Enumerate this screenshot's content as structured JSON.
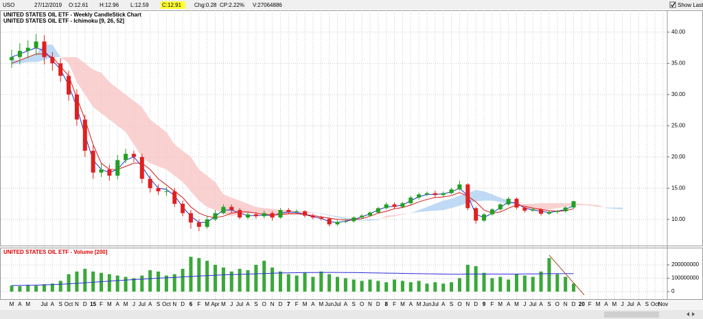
{
  "header": {
    "symbol": "USO",
    "date": "27/12/2019",
    "open": "O:12.61",
    "high": "H:12.96",
    "low": "L:12.59",
    "close": "C:12.91",
    "change": "Chg:0.28",
    "change_pct": "CP:2.22%",
    "volume": "V:27064886",
    "show_last": "Show Last"
  },
  "chart_data": {
    "type": "candlestick",
    "title": "UNITED STATES OIL ETF - Weekly CandleStick Chart",
    "subtitle": "UNITED STATES OIL ETF - Ichimoku [9, 26, 52]",
    "categories": [
      "M",
      "A",
      "M",
      null,
      "Jul",
      "A",
      "S",
      "Oct",
      "N",
      "D",
      "15",
      "F",
      "M",
      "A",
      "M",
      "J",
      "Jul",
      "A",
      "S",
      "Oct",
      "N",
      "D",
      "6",
      "F",
      "M",
      "Apr",
      "M",
      "J",
      "Jul",
      "A",
      "S",
      "O",
      "N",
      "D",
      "7",
      "F",
      "M",
      "A",
      "M",
      "Jun",
      "Jul",
      "A",
      "S",
      "O",
      "N",
      "D",
      "8",
      "F",
      "M",
      "A",
      "M",
      "Jun",
      "Jul",
      "A",
      "S",
      "O",
      "N",
      "D",
      "9",
      "F",
      "M",
      "A",
      "M",
      "J",
      "Jul",
      "A",
      "S",
      "O",
      "N",
      "D",
      "20",
      "F",
      "M",
      "A",
      "M",
      "J",
      "Jul",
      "A",
      "S",
      "Oct",
      "Nov"
    ],
    "open": [
      35.5,
      36,
      37,
      37.5,
      38.5,
      36,
      35,
      33,
      30,
      26,
      21,
      17.5,
      18,
      17,
      19.5,
      20.5,
      20,
      16.5,
      15,
      14.5,
      14.5,
      12.5,
      11,
      9.5,
      8.8,
      10,
      11,
      12,
      11.5,
      10.3,
      10.8,
      10.5,
      11,
      10.3,
      11.5,
      11.2,
      11.3,
      10.6,
      10.3,
      10.1,
      9.2,
      9.6,
      9.7,
      10.3,
      10.6,
      11.1,
      11.8,
      12.4,
      12,
      12.6,
      13.5,
      14,
      14.2,
      13.9,
      14.2,
      14.8,
      15.6,
      11.8,
      9.8,
      10.8,
      11.6,
      12.4,
      13.3,
      11.9,
      11.4,
      11.6,
      10.9,
      11.2,
      11.3,
      11.9,
      null,
      null,
      null,
      null,
      null,
      null,
      null,
      null,
      null,
      null,
      null
    ],
    "high": [
      37.2,
      38.2,
      38.7,
      39.7,
      39.5,
      36.8,
      35.8,
      33.8,
      30.8,
      26.8,
      21.8,
      19,
      18.8,
      20.3,
      21.3,
      21,
      20.5,
      17,
      15.6,
      15.2,
      15,
      13,
      11.5,
      10,
      10.6,
      11.5,
      12.4,
      12.4,
      11.8,
      11.1,
      11.2,
      11.4,
      11.3,
      11.8,
      11.8,
      11.6,
      11.5,
      10.9,
      10.6,
      10.3,
      9.9,
      10,
      10.5,
      10.8,
      11.3,
      12,
      12.7,
      12.7,
      12.8,
      13.8,
      14.3,
      14.5,
      14.6,
      14.5,
      15.1,
      16.2,
      15.8,
      12,
      11,
      11.8,
      12.6,
      13.6,
      13.5,
      12.1,
      11.9,
      11.8,
      11.4,
      11.5,
      12.1,
      12.96,
      null,
      null,
      null,
      null,
      null,
      null,
      null,
      null,
      null,
      null,
      null
    ],
    "low": [
      34.3,
      34.8,
      35.8,
      36.3,
      34.8,
      33.8,
      32,
      29,
      25,
      20,
      16.5,
      16.8,
      16.2,
      16.4,
      19,
      19.2,
      15.8,
      14.3,
      13.9,
      13.8,
      12,
      10.5,
      8.5,
      8.1,
      8.5,
      9.7,
      10.8,
      11,
      10,
      10,
      10.1,
      10.2,
      9.8,
      10.1,
      10.9,
      10.9,
      10.3,
      10,
      9.8,
      8.9,
      9,
      9.4,
      9.5,
      10.1,
      10.4,
      10.9,
      11.6,
      11.7,
      11.8,
      12.4,
      13.2,
      13.7,
      13.5,
      13.6,
      14,
      14.6,
      11.5,
      9.3,
      9.6,
      10.6,
      11.4,
      12.2,
      11.6,
      11.1,
      11.2,
      10.6,
      10.7,
      10.9,
      11.1,
      11.7,
      null,
      null,
      null,
      null,
      null,
      null,
      null,
      null,
      null,
      null,
      null
    ],
    "close": [
      36,
      37,
      37.5,
      38.5,
      36,
      35,
      33,
      30,
      26,
      21,
      17.5,
      18,
      17,
      19.5,
      20.5,
      20,
      16.5,
      15,
      14.5,
      14.5,
      12.5,
      11,
      9.5,
      8.8,
      10,
      11,
      12,
      11.5,
      10.3,
      10.8,
      10.5,
      11,
      10.3,
      11.5,
      11.2,
      11.3,
      10.6,
      10.3,
      10.1,
      9.2,
      9.6,
      9.7,
      10.3,
      10.6,
      11.1,
      11.8,
      12.4,
      12,
      12.6,
      13.5,
      14,
      14.2,
      13.9,
      14.2,
      14.8,
      15.6,
      11.8,
      9.8,
      10.8,
      11.6,
      12.4,
      13.3,
      11.9,
      11.4,
      11.6,
      10.9,
      11.2,
      11.3,
      11.9,
      12.91,
      null,
      null,
      null,
      null,
      null,
      null,
      null,
      null,
      null,
      null,
      null
    ],
    "up_color": "#22a022",
    "down_color": "#e02020",
    "series": [
      {
        "color": "#1f2fd0",
        "values": [
          36,
          36.5,
          37,
          37.5,
          37,
          35.5,
          34,
          31.5,
          28,
          23.5,
          19.5,
          18,
          17.5,
          18,
          19.5,
          20,
          18.5,
          16.5,
          15,
          14.8,
          13.8,
          12,
          10.5,
          9.5,
          9.5,
          10.5,
          11.5,
          11.5,
          11,
          10.6,
          10.6,
          10.7,
          10.6,
          11,
          11.2,
          11.1,
          10.8,
          10.4,
          10.2,
          9.6,
          9.5,
          9.7,
          10,
          10.4,
          10.9,
          11.5,
          12,
          12.1,
          12.3,
          13,
          13.6,
          14,
          14,
          14.1,
          14.4,
          15,
          13.8,
          10.8,
          10.3,
          11,
          11.9,
          12.8,
          12.6,
          11.8,
          11.5,
          11.3,
          11.1,
          11.3,
          11.6,
          12.2,
          null,
          null,
          null,
          null,
          null,
          null,
          null,
          null,
          null,
          null,
          null
        ]
      },
      {
        "color": "#d01818",
        "values": [
          35,
          35.5,
          36,
          36.5,
          36.5,
          36,
          34.5,
          33,
          29.5,
          26,
          22,
          19,
          18,
          18,
          18.5,
          19,
          19,
          18,
          16.5,
          15.5,
          14.5,
          13.5,
          12,
          11,
          10.5,
          10.3,
          10.5,
          11,
          11.2,
          11.2,
          11,
          10.8,
          10.7,
          10.8,
          10.9,
          10.9,
          10.8,
          10.6,
          10.4,
          10.2,
          10,
          9.9,
          10,
          10.1,
          10.5,
          11,
          11.3,
          11.7,
          11.9,
          12.3,
          12.8,
          13.2,
          13.5,
          13.6,
          13.8,
          14.3,
          13.7,
          12.8,
          11.5,
          11,
          11.2,
          11.8,
          12.3,
          12.1,
          11.8,
          11.6,
          11.4,
          11.3,
          11.4,
          11.7,
          null,
          null,
          null,
          null,
          null,
          null,
          null,
          null,
          null,
          null,
          null
        ]
      }
    ],
    "cloud": {
      "bull_color": "#a9cdf2",
      "bear_color": "#f8c2c2",
      "span_a": [
        35.5,
        35.5,
        36,
        36.5,
        38,
        38,
        36,
        35,
        32,
        30,
        28,
        27,
        26,
        25,
        24,
        22,
        20,
        19,
        18.5,
        18,
        17,
        16,
        14.5,
        13,
        12,
        11.5,
        11,
        10.5,
        10.8,
        11,
        11,
        10.8,
        10.5,
        10.6,
        10.7,
        10.8,
        11,
        11,
        11,
        10.7,
        10.5,
        10.3,
        10.1,
        9.9,
        10,
        10,
        10.3,
        10.5,
        10.8,
        11,
        11.5,
        12,
        12.5,
        13,
        13.3,
        13.8,
        14.2,
        14.7,
        14.5,
        14,
        13.5,
        13,
        12.4,
        12,
        11.5,
        11.5,
        11.6,
        11.8,
        12,
        12.2,
        12.3,
        12.2,
        12,
        11.9,
        11.9,
        11.9,
        null,
        null,
        null,
        null,
        null
      ],
      "span_b": [
        34.8,
        35,
        35.2,
        35.2,
        35.5,
        36,
        36,
        36,
        36,
        35,
        34,
        33.5,
        32,
        31,
        30,
        29,
        28,
        26,
        25,
        24,
        22,
        21,
        20,
        18,
        17,
        16,
        14,
        13.5,
        13,
        12.5,
        12,
        11.8,
        11.7,
        11.5,
        11.5,
        11.3,
        11.3,
        11.1,
        10.9,
        10.6,
        10.3,
        10,
        9.8,
        9.8,
        9.8,
        9.9,
        10.6,
        10.7,
        10.9,
        11,
        11.2,
        11.3,
        11.4,
        11.5,
        11.8,
        12.2,
        12.6,
        12.9,
        13,
        13,
        12.8,
        12.5,
        12.5,
        12.5,
        12.5,
        12.6,
        12.6,
        12.6,
        12.6,
        12.6,
        12.5,
        12.4,
        12.3,
        11.8,
        11.7,
        11.6,
        null,
        null,
        null,
        null,
        null
      ]
    },
    "ylim": [
      5.8,
      43.5
    ],
    "yticks": [
      {
        "value": 10,
        "label": "10.00"
      },
      {
        "value": 15,
        "label": "15.00"
      },
      {
        "value": 20,
        "label": "20.00"
      },
      {
        "value": 25,
        "label": "25.00"
      },
      {
        "value": 30,
        "label": "30.00"
      },
      {
        "value": 35,
        "label": "35.00"
      },
      {
        "value": 40,
        "label": "40.00"
      }
    ],
    "grid": true,
    "volume": {
      "title": "UNITED STATES OIL ETF - Volume [200]",
      "color": "#3aa83a",
      "values": [
        45000000,
        40000000,
        50000000,
        45000000,
        55000000,
        60000000,
        80000000,
        130000000,
        150000000,
        170000000,
        150000000,
        140000000,
        130000000,
        120000000,
        110000000,
        100000000,
        120000000,
        160000000,
        150000000,
        120000000,
        130000000,
        170000000,
        260000000,
        250000000,
        230000000,
        200000000,
        180000000,
        150000000,
        170000000,
        160000000,
        200000000,
        230000000,
        180000000,
        150000000,
        130000000,
        120000000,
        140000000,
        110000000,
        150000000,
        130000000,
        110000000,
        100000000,
        90000000,
        80000000,
        90000000,
        80000000,
        70000000,
        90000000,
        80000000,
        70000000,
        80000000,
        60000000,
        70000000,
        60000000,
        70000000,
        100000000,
        200000000,
        190000000,
        140000000,
        100000000,
        110000000,
        90000000,
        130000000,
        120000000,
        110000000,
        150000000,
        250000000,
        130000000,
        110000000,
        60000000,
        null,
        null,
        null,
        null,
        null,
        null,
        null,
        null,
        null,
        null,
        null
      ],
      "ma_color": "#2a2ad8",
      "ma_values": [
        45000000,
        46000000,
        47000000,
        48000000,
        50000000,
        52000000,
        55000000,
        58000000,
        62000000,
        66000000,
        70000000,
        74000000,
        78000000,
        82000000,
        86000000,
        90000000,
        93000000,
        96000000,
        100000000,
        103000000,
        106000000,
        110000000,
        113000000,
        116000000,
        119000000,
        122000000,
        125000000,
        127000000,
        129000000,
        131000000,
        133000000,
        135000000,
        137000000,
        139000000,
        140000000,
        141000000,
        142000000,
        142000000,
        143000000,
        143000000,
        143000000,
        142000000,
        142000000,
        141000000,
        140000000,
        139000000,
        138000000,
        137000000,
        136000000,
        135000000,
        134000000,
        133000000,
        132000000,
        131000000,
        130000000,
        130000000,
        131000000,
        131000000,
        131000000,
        131000000,
        131000000,
        131000000,
        131000000,
        132000000,
        132000000,
        133000000,
        134000000,
        134000000,
        134000000,
        134000000,
        null,
        null,
        null,
        null,
        null,
        null,
        null,
        null,
        null,
        null,
        null
      ],
      "ylim": [
        -56000000,
        328000000
      ],
      "yticks": [
        0,
        100000000,
        200000000
      ]
    }
  }
}
